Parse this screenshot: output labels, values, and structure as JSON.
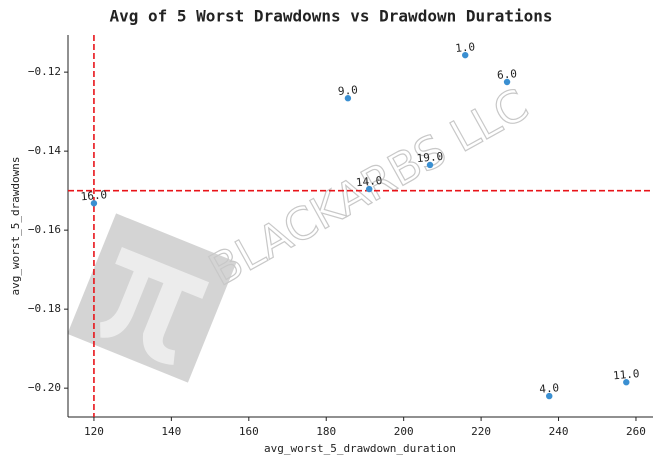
{
  "chart_data": {
    "type": "scatter",
    "title": "Avg of 5 Worst Drawdowns vs Drawdown Durations",
    "x_label": "avg_worst_5_drawdown_duration",
    "y_label": "avg_worst_5_drawdowns",
    "watermark": "BLACKARBS LLC",
    "x": [
      215.9,
      226.7,
      185.6,
      206.8,
      191.1,
      120,
      237.6,
      257.5
    ],
    "values": [
      -0.1157,
      -0.1225,
      -0.1266,
      -0.1435,
      -0.1496,
      -0.1532,
      -0.202,
      -0.1985
    ],
    "point_labels": [
      "1.0",
      "6.0",
      "9.0",
      "19.0",
      "14.0",
      "16.0",
      "4.0",
      "11.0"
    ],
    "color": "#3a8fd1",
    "ref_color": "#e8141a",
    "vlines": [
      120
    ],
    "hlines": [
      -0.15
    ],
    "xlim": [
      113.3,
      264.4
    ],
    "ylim": [
      -0.2073,
      -0.1106
    ],
    "xticks": [
      120,
      140,
      160,
      180,
      200,
      220,
      240,
      260
    ],
    "yticks": [
      {
        "value": -0.12,
        "label": "−0.12"
      },
      {
        "value": -0.14,
        "label": "−0.14"
      },
      {
        "value": -0.16,
        "label": "−0.16"
      },
      {
        "value": -0.18,
        "label": "−0.18"
      },
      {
        "value": -0.2,
        "label": "−0.20"
      }
    ]
  }
}
